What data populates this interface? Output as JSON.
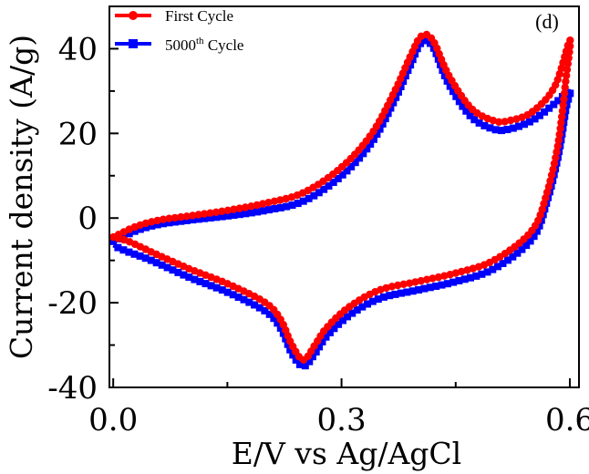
{
  "chart_data": {
    "type": "line",
    "panel_label": "(d)",
    "xlabel": "E/V vs Ag/AgCl",
    "ylabel": "Current density (A/g)",
    "xlim": [
      -0.005,
      0.612
    ],
    "ylim": [
      -40,
      50
    ],
    "xticks": [
      {
        "value": 0.0,
        "label": "0.0"
      },
      {
        "value": 0.3,
        "label": "0.3"
      },
      {
        "value": 0.6,
        "label": "0.6"
      }
    ],
    "yticks": [
      {
        "value": -40,
        "label": "-40"
      },
      {
        "value": -20,
        "label": "-20"
      },
      {
        "value": 0,
        "label": "0"
      },
      {
        "value": 20,
        "label": "20"
      },
      {
        "value": 40,
        "label": "40"
      }
    ],
    "grid": false,
    "legend_position": "top-left",
    "series": [
      {
        "name": "First Cycle",
        "superscript": "",
        "color": "#ff0000",
        "marker": "circle",
        "points": [
          [
            0.0,
            -4.5
          ],
          [
            0.03,
            -2.0
          ],
          [
            0.06,
            -0.5
          ],
          [
            0.1,
            0.5
          ],
          [
            0.15,
            1.8
          ],
          [
            0.2,
            3.5
          ],
          [
            0.25,
            6.0
          ],
          [
            0.3,
            12.0
          ],
          [
            0.34,
            20.0
          ],
          [
            0.37,
            30.0
          ],
          [
            0.39,
            38.0
          ],
          [
            0.405,
            43.0
          ],
          [
            0.42,
            42.0
          ],
          [
            0.44,
            34.0
          ],
          [
            0.47,
            26.0
          ],
          [
            0.5,
            23.0
          ],
          [
            0.52,
            23.0
          ],
          [
            0.55,
            25.0
          ],
          [
            0.58,
            31.0
          ],
          [
            0.6,
            42.0
          ],
          [
            0.595,
            33.0
          ],
          [
            0.585,
            18.0
          ],
          [
            0.57,
            6.0
          ],
          [
            0.55,
            -3.0
          ],
          [
            0.5,
            -10.0
          ],
          [
            0.45,
            -13.0
          ],
          [
            0.4,
            -15.0
          ],
          [
            0.35,
            -17.0
          ],
          [
            0.31,
            -21.0
          ],
          [
            0.28,
            -26.0
          ],
          [
            0.265,
            -30.0
          ],
          [
            0.25,
            -33.5
          ],
          [
            0.235,
            -30.0
          ],
          [
            0.22,
            -24.0
          ],
          [
            0.2,
            -20.0
          ],
          [
            0.15,
            -15.5
          ],
          [
            0.1,
            -12.0
          ],
          [
            0.05,
            -8.0
          ],
          [
            0.02,
            -5.5
          ],
          [
            0.0,
            -4.5
          ]
        ]
      },
      {
        "name": "5000",
        "superscript": "th",
        "name_suffix": " Cycle",
        "color": "#0000ff",
        "marker": "square",
        "points": [
          [
            0.0,
            -5.5
          ],
          [
            0.03,
            -3.0
          ],
          [
            0.06,
            -1.5
          ],
          [
            0.1,
            -0.5
          ],
          [
            0.15,
            0.5
          ],
          [
            0.2,
            1.8
          ],
          [
            0.25,
            4.0
          ],
          [
            0.3,
            10.0
          ],
          [
            0.34,
            18.0
          ],
          [
            0.37,
            28.0
          ],
          [
            0.39,
            36.0
          ],
          [
            0.405,
            41.5
          ],
          [
            0.42,
            40.5
          ],
          [
            0.44,
            32.0
          ],
          [
            0.47,
            24.0
          ],
          [
            0.5,
            21.0
          ],
          [
            0.52,
            21.0
          ],
          [
            0.55,
            23.0
          ],
          [
            0.58,
            27.0
          ],
          [
            0.6,
            30.0
          ],
          [
            0.595,
            26.0
          ],
          [
            0.585,
            15.0
          ],
          [
            0.57,
            4.0
          ],
          [
            0.55,
            -5.0
          ],
          [
            0.5,
            -12.0
          ],
          [
            0.45,
            -15.0
          ],
          [
            0.4,
            -17.0
          ],
          [
            0.35,
            -19.0
          ],
          [
            0.31,
            -23.0
          ],
          [
            0.28,
            -28.0
          ],
          [
            0.265,
            -32.0
          ],
          [
            0.25,
            -35.0
          ],
          [
            0.235,
            -32.0
          ],
          [
            0.22,
            -26.0
          ],
          [
            0.2,
            -22.0
          ],
          [
            0.15,
            -17.5
          ],
          [
            0.1,
            -14.0
          ],
          [
            0.05,
            -10.0
          ],
          [
            0.02,
            -8.0
          ],
          [
            0.0,
            -6.5
          ]
        ]
      }
    ]
  }
}
